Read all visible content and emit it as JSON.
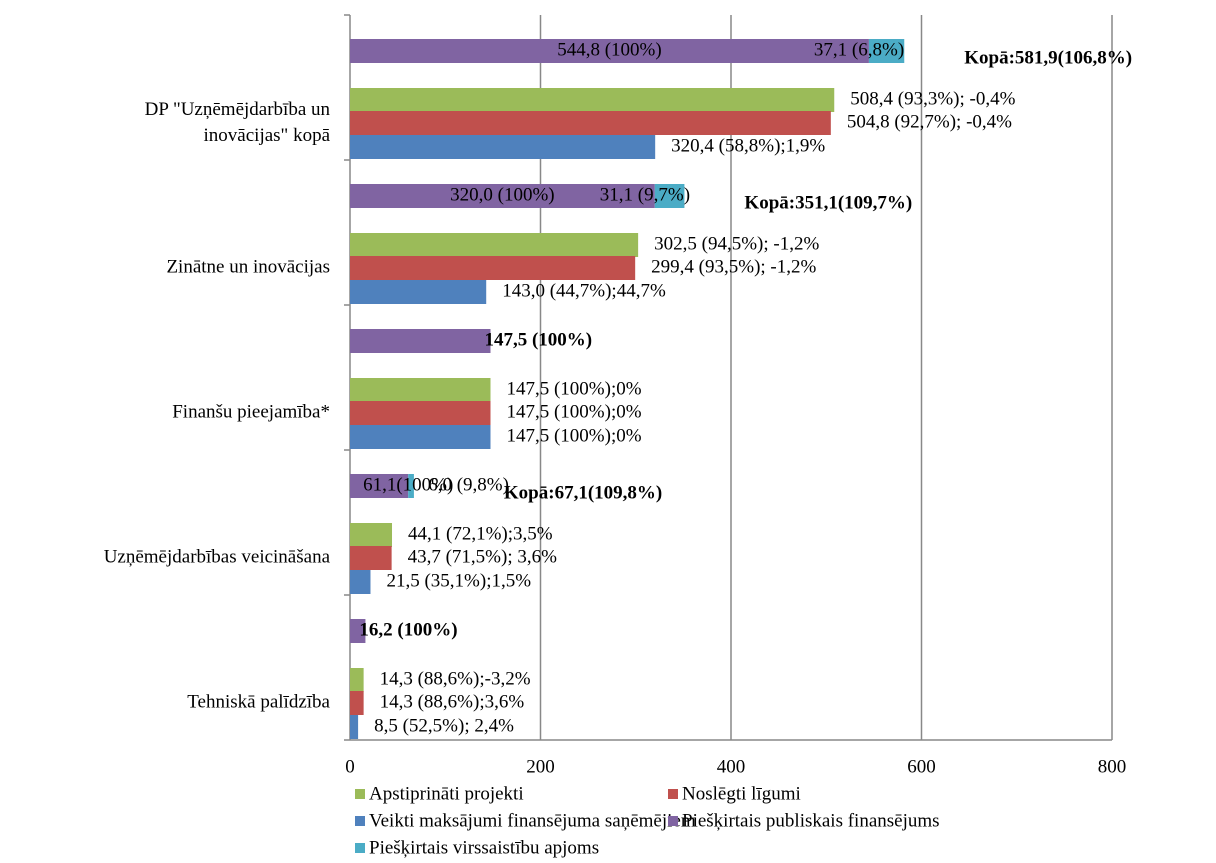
{
  "chart_data": {
    "type": "bar",
    "orientation": "horizontal",
    "categories": [
      "DP \"Uzņēmējdarbība un inovācijas\" kopā",
      "Zinātne un inovācijas",
      "Finanšu pieejamība*",
      "Uzņēmējdarbības veicināšana",
      "Tehniskā palīdzība"
    ],
    "series": [
      {
        "name": "Apstiprināti projekti",
        "color": "#9bbb59",
        "values": [
          508.4,
          302.5,
          147.5,
          44.1,
          14.3
        ],
        "value_labels": [
          "508,4 (93,3%); -0,4%",
          "302,5 (94,5%); -1,2%",
          "147,5 (100%);0%",
          "44,1 (72,1%);3,5%",
          "14,3 (88,6%);-3,2%"
        ]
      },
      {
        "name": "Noslēgti līgumi",
        "color": "#c0504d",
        "values": [
          504.8,
          299.4,
          147.5,
          43.7,
          14.3
        ],
        "value_labels": [
          "504,8 (92,7%); -0,4%",
          "299,4 (93,5%); -1,2%",
          "147,5 (100%);0%",
          "43,7 (71,5%); 3,6%",
          "14,3 (88,6%);3,6%"
        ]
      },
      {
        "name": "Veikti maksājumi finansējuma saņēmējiem",
        "color": "#4f81bd",
        "values": [
          320.4,
          143.0,
          147.5,
          21.5,
          8.5
        ],
        "value_labels": [
          "320,4 (58,8%);1,9%",
          "143,0 (44,7%);44,7%",
          "147,5 (100%);0%",
          "21,5 (35,1%);1,5%",
          "8,5 (52,5%); 2,4%"
        ]
      },
      {
        "name": "Piešķirtais publiskais finansējums",
        "color": "#8064a2",
        "values": [
          544.8,
          320.0,
          147.5,
          61.1,
          16.2
        ],
        "value_labels": [
          "544,8 (100%)",
          "320,0 (100%)",
          "147,5 (100%)",
          "61,1(100%)",
          "16,2 (100%)"
        ]
      },
      {
        "name": "Piešķirtais virssaistību apjoms",
        "color": "#4bacc6",
        "stack": true,
        "values": [
          37.1,
          31.1,
          null,
          6.0,
          null
        ],
        "value_labels": [
          "37,1 (6,8%)",
          "31,1 (9,7%)",
          null,
          "6,0 (9,8%)",
          null
        ]
      }
    ],
    "total_labels": [
      "Kopā:581,9(106,8%)",
      "Kopā:351,1(109,7%)",
      null,
      "Kopā:67,1(109,8%)",
      null
    ],
    "xlim": [
      0,
      800
    ],
    "xticks": [
      0,
      200,
      400,
      600,
      800
    ],
    "grid": true,
    "legend": "bottom"
  }
}
